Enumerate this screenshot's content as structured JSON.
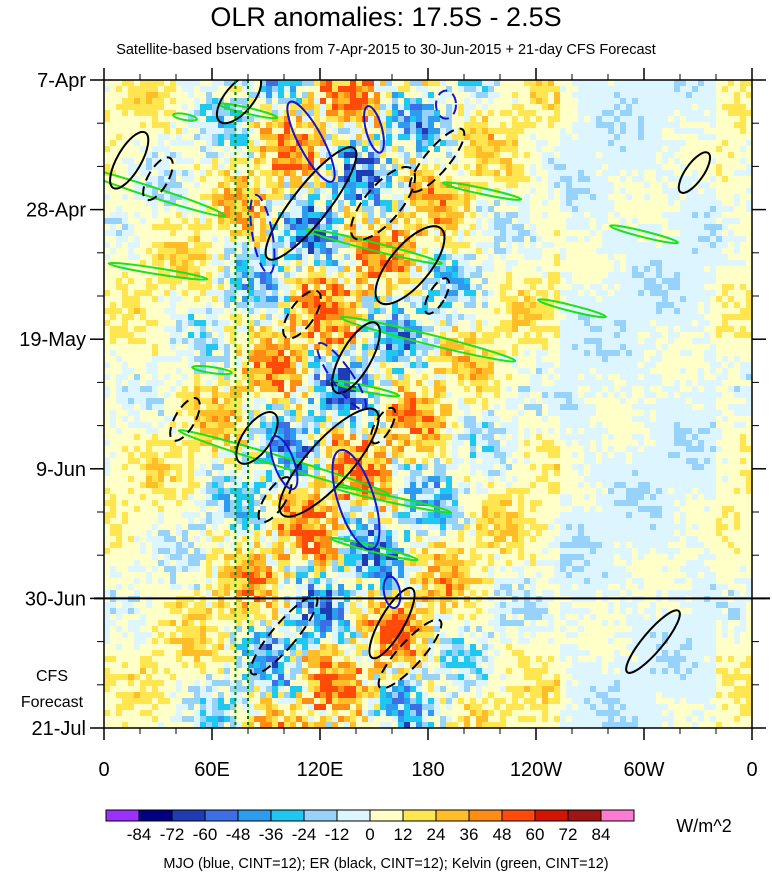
{
  "chart_data": {
    "type": "heatmap",
    "title": "OLR anomalies: 17.5S - 2.5S",
    "subtitle": "Satellite-based bservations from 7-Apr-2015 to 30-Jun-2015 + 21-day CFS Forecast",
    "xaxis": {
      "range_deg": [
        0,
        360
      ],
      "ticks": [
        {
          "deg": 0,
          "label": "0"
        },
        {
          "deg": 60,
          "label": "60E"
        },
        {
          "deg": 120,
          "label": "120E"
        },
        {
          "deg": 180,
          "label": "180"
        },
        {
          "deg": 240,
          "label": "120W"
        },
        {
          "deg": 300,
          "label": "60W"
        },
        {
          "deg": 360,
          "label": "0"
        }
      ]
    },
    "yaxis": {
      "range_days_from_7Apr": [
        0,
        105
      ],
      "ticks": [
        {
          "day": 0,
          "label": "7-Apr"
        },
        {
          "day": 21,
          "label": "28-Apr"
        },
        {
          "day": 42,
          "label": "19-May"
        },
        {
          "day": 63,
          "label": "9-Jun"
        },
        {
          "day": 84,
          "label": "30-Jun"
        },
        {
          "day": 105,
          "label": "21-Jul"
        }
      ]
    },
    "forecast_label": [
      "CFS",
      "Forecast"
    ],
    "forecast_start_day": 84,
    "colorbar": {
      "unit": "W/m^2",
      "levels": [
        -84,
        -72,
        -60,
        -48,
        -36,
        -24,
        -12,
        0,
        12,
        24,
        36,
        48,
        60,
        72,
        84
      ],
      "colors": [
        "#9b30ff",
        "#000080",
        "#1e3cb4",
        "#3c6ee6",
        "#2d9bf0",
        "#1ec8f0",
        "#96d2fa",
        "#dcf5ff",
        "#ffffc8",
        "#ffe650",
        "#ffbe28",
        "#ff8c14",
        "#ff4a0a",
        "#d21400",
        "#a01414",
        "#ff7ad2"
      ]
    },
    "lines_legend": "MJO (blue, CINT=12); ER (black, CINT=12); Kelvin (green, CINT=12)",
    "line_colors": {
      "mjo": "#1515d0",
      "er": "#000000",
      "kelvin": "#1ee11e",
      "reference": "#008000"
    }
  }
}
